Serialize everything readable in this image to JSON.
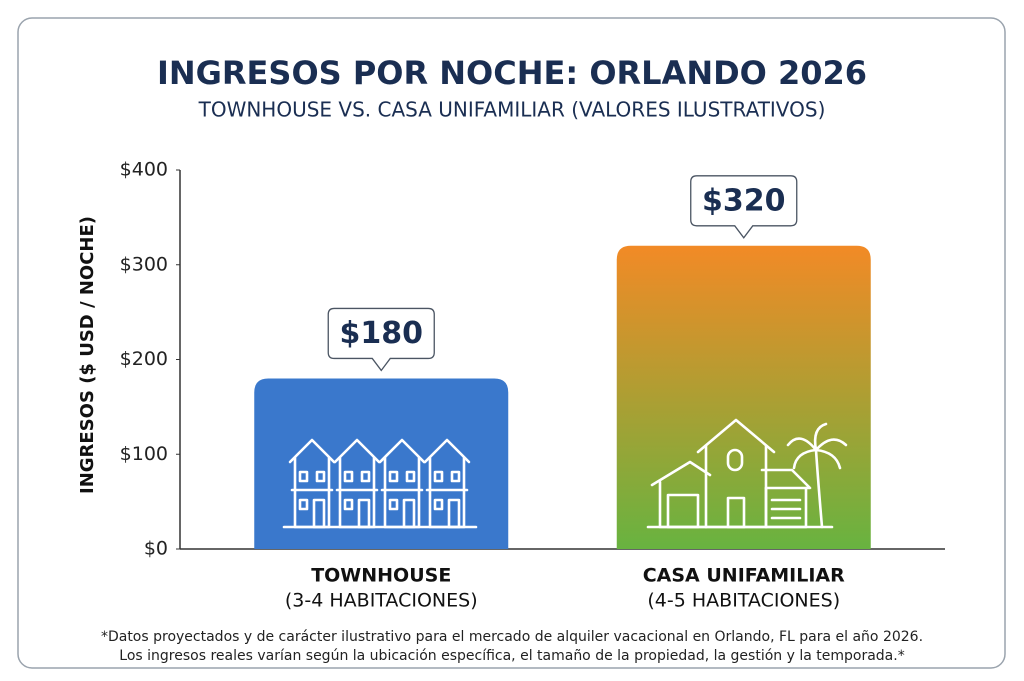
{
  "chart_data": {
    "type": "bar",
    "title": "INGRESOS POR NOCHE: ORLANDO 2026",
    "subtitle": "TOWNHOUSE VS. CASA UNIFAMILIAR (VALORES ILUSTRATIVOS)",
    "y_label": "INGRESOS ($ USD / NOCHE)",
    "categories": [
      "TOWNHOUSE",
      "CASA UNIFAMILIAR"
    ],
    "category_subtitles": [
      "(3-4 HABITACIONES)",
      "(4-5 HABITACIONES)"
    ],
    "values": [
      180,
      320
    ],
    "value_labels": [
      "$180",
      "$320"
    ],
    "bar_fills": [
      [
        "#3a78cc",
        "#3a78cc"
      ],
      [
        "#f28a26",
        "#68b340"
      ]
    ],
    "ylim": [
      0,
      400
    ],
    "yticks": [
      {
        "value": 0,
        "label": "$0"
      },
      {
        "value": 100,
        "label": "$100"
      },
      {
        "value": 200,
        "label": "$200"
      },
      {
        "value": 300,
        "label": "$300"
      },
      {
        "value": 400,
        "label": "$400"
      }
    ],
    "footnote": [
      "*Datos proyectados y de carácter ilustrativo para el mercado de alquiler vacacional en Orlando, FL para el año 2026.",
      "Los ingresos reales varían según la ubicación específica, el tamaño de la propiedad, la gestión y la temporada.*"
    ]
  }
}
